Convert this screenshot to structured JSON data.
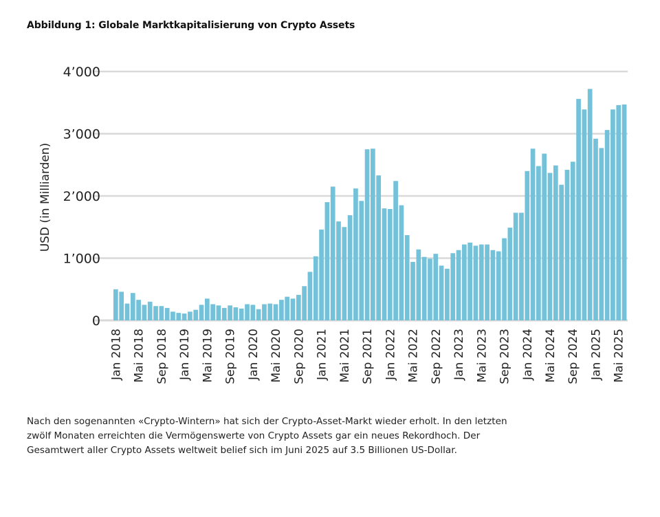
{
  "figure": {
    "title": "Abbildung 1: Globale Marktkapitalisierung von Crypto Assets",
    "caption_lines": [
      "Nach den sogenannten «Crypto-Wintern» hat sich der Crypto-Asset-Markt wieder erholt. In den letzten",
      "zwölf Monaten erreichten die Vermögenswerte von Crypto Assets gar ein neues Rekordhoch. Der",
      "Gesamtwert aller Crypto Assets weltweit belief sich im Juni 2025 auf 3.5 Billionen US-Dollar."
    ]
  },
  "chart_data": {
    "type": "bar",
    "title": "Globale Marktkapitalisierung von Crypto Assets",
    "xlabel": "",
    "ylabel": "USD (in Milliarden)",
    "ylim": [
      0,
      4000
    ],
    "yticks": [
      0,
      1000,
      2000,
      3000,
      4000
    ],
    "ytick_labels": [
      "0",
      "1’000",
      "2’000",
      "3’000",
      "4’000"
    ],
    "grid": "horizontal",
    "bar_color": "#74c2da",
    "grid_color": "#d9d9d9",
    "x_start": "Jan 2018",
    "x_end": "Jun 2025",
    "xtick_every": 4,
    "xtick_labels": [
      "Jan 2018",
      "Mai 2018",
      "Sep 2018",
      "Jan 2019",
      "Mai 2019",
      "Sep 2019",
      "Jan 2020",
      "Mai 2020",
      "Sep 2020",
      "Jan 2021",
      "Mai 2021",
      "Sep 2021",
      "Jan 2022",
      "Mai 2022",
      "Sep 2022",
      "Jan 2023",
      "Mai 2023",
      "Sep 2023",
      "Jan 2024",
      "Mai 2024",
      "Sep 2024",
      "Jan 2025",
      "Mai 2025"
    ],
    "values": [
      500,
      460,
      270,
      440,
      330,
      250,
      300,
      230,
      230,
      200,
      140,
      120,
      110,
      140,
      170,
      250,
      350,
      260,
      240,
      200,
      240,
      210,
      190,
      260,
      250,
      180,
      260,
      270,
      260,
      330,
      380,
      350,
      410,
      550,
      780,
      1030,
      1460,
      1900,
      2150,
      1590,
      1500,
      1690,
      2120,
      1920,
      2750,
      2760,
      2330,
      1800,
      1790,
      2240,
      1850,
      1370,
      940,
      1140,
      1020,
      990,
      1070,
      880,
      830,
      1080,
      1130,
      1220,
      1250,
      1200,
      1220,
      1220,
      1130,
      1110,
      1320,
      1490,
      1730,
      1730,
      2400,
      2760,
      2480,
      2680,
      2370,
      2490,
      2180,
      2420,
      2550,
      3560,
      3390,
      3720,
      2920,
      2770,
      3060,
      3390,
      3460,
      3470
    ]
  }
}
